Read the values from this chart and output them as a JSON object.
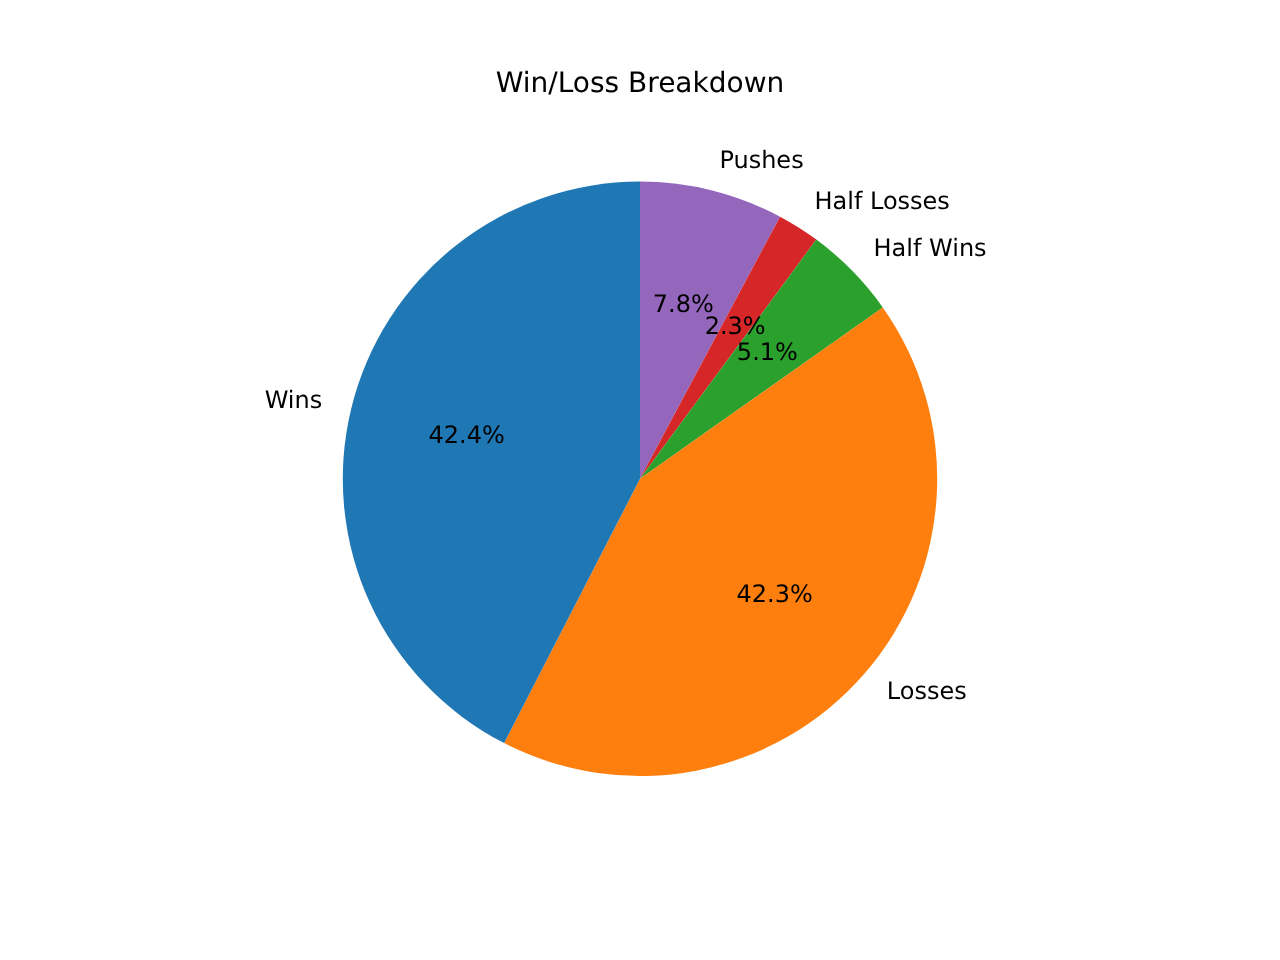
{
  "chart_data": {
    "type": "pie",
    "title": "Win/Loss Breakdown",
    "categories": [
      "Pushes",
      "Half Losses",
      "Half Wins",
      "Losses",
      "Wins"
    ],
    "values": [
      7.8,
      2.3,
      5.1,
      42.3,
      42.4
    ],
    "value_labels": [
      "7.8%",
      "2.3%",
      "5.1%",
      "42.3%",
      "42.4%"
    ],
    "colors": [
      "#9467bd",
      "#d62728",
      "#2ca02c",
      "#ff7f0e",
      "#1f77b4"
    ],
    "legend": false
  }
}
